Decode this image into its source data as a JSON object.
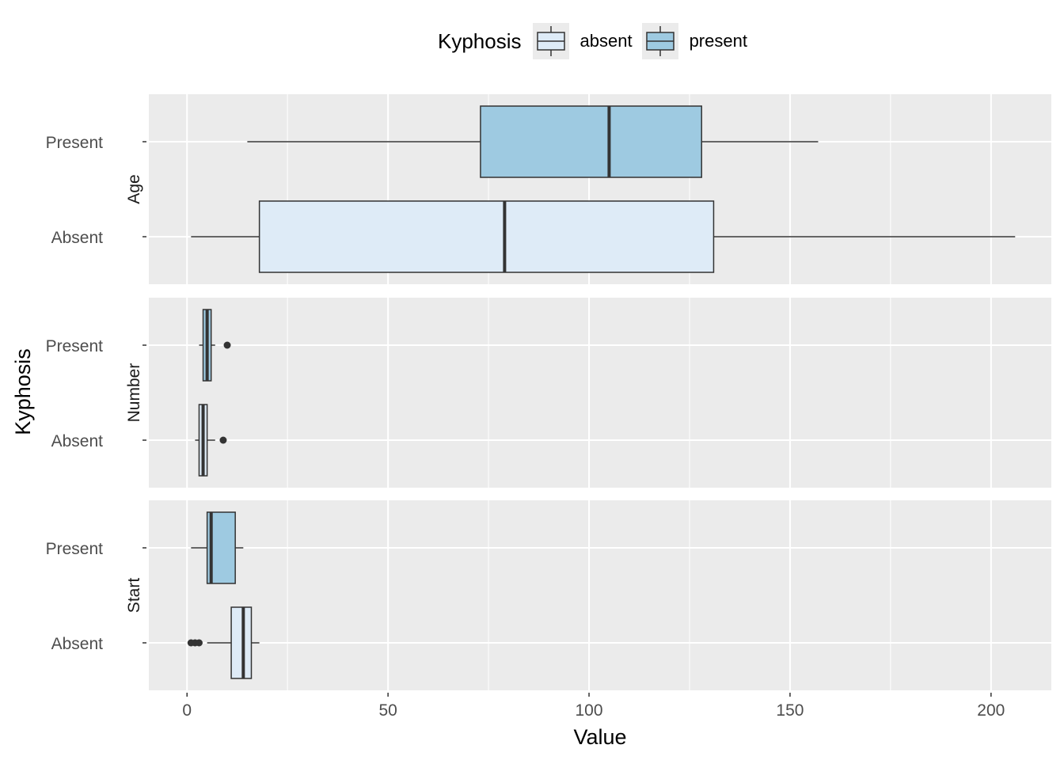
{
  "chart_data": {
    "type": "boxplot",
    "orientation": "horizontal",
    "facet_layout": "rows",
    "legend": {
      "title": "Kyphosis",
      "position": "top",
      "entries": [
        {
          "label": "absent",
          "color": "#deebf7"
        },
        {
          "label": "present",
          "color": "#9ecae1"
        }
      ]
    },
    "xlabel": "Value",
    "ylabel": "Kyphosis",
    "xlim": [
      -9.5,
      215
    ],
    "xticks": [
      0,
      50,
      100,
      150,
      200
    ],
    "grid": true,
    "panels": [
      {
        "strip": "Age",
        "categories": [
          "Present",
          "Absent"
        ],
        "boxes": [
          {
            "group": "Present",
            "whisker_low": 15,
            "q1": 73,
            "median": 105,
            "q3": 128,
            "whisker_high": 157,
            "outliers": []
          },
          {
            "group": "Absent",
            "whisker_low": 1,
            "q1": 18,
            "median": 79,
            "q3": 131,
            "whisker_high": 206,
            "outliers": []
          }
        ]
      },
      {
        "strip": "Number",
        "categories": [
          "Present",
          "Absent"
        ],
        "boxes": [
          {
            "group": "Present",
            "whisker_low": 3,
            "q1": 4,
            "median": 5,
            "q3": 6,
            "whisker_high": 7,
            "outliers": [
              10
            ]
          },
          {
            "group": "Absent",
            "whisker_low": 2,
            "q1": 3,
            "median": 4,
            "q3": 5,
            "whisker_high": 7,
            "outliers": [
              9
            ]
          }
        ]
      },
      {
        "strip": "Start",
        "categories": [
          "Present",
          "Absent"
        ],
        "boxes": [
          {
            "group": "Present",
            "whisker_low": 1,
            "q1": 5,
            "median": 6,
            "q3": 12,
            "whisker_high": 14,
            "outliers": []
          },
          {
            "group": "Absent",
            "whisker_low": 5,
            "q1": 11,
            "median": 14,
            "q3": 16,
            "whisker_high": 18,
            "outliers": [
              1,
              2,
              3
            ]
          }
        ]
      }
    ]
  }
}
